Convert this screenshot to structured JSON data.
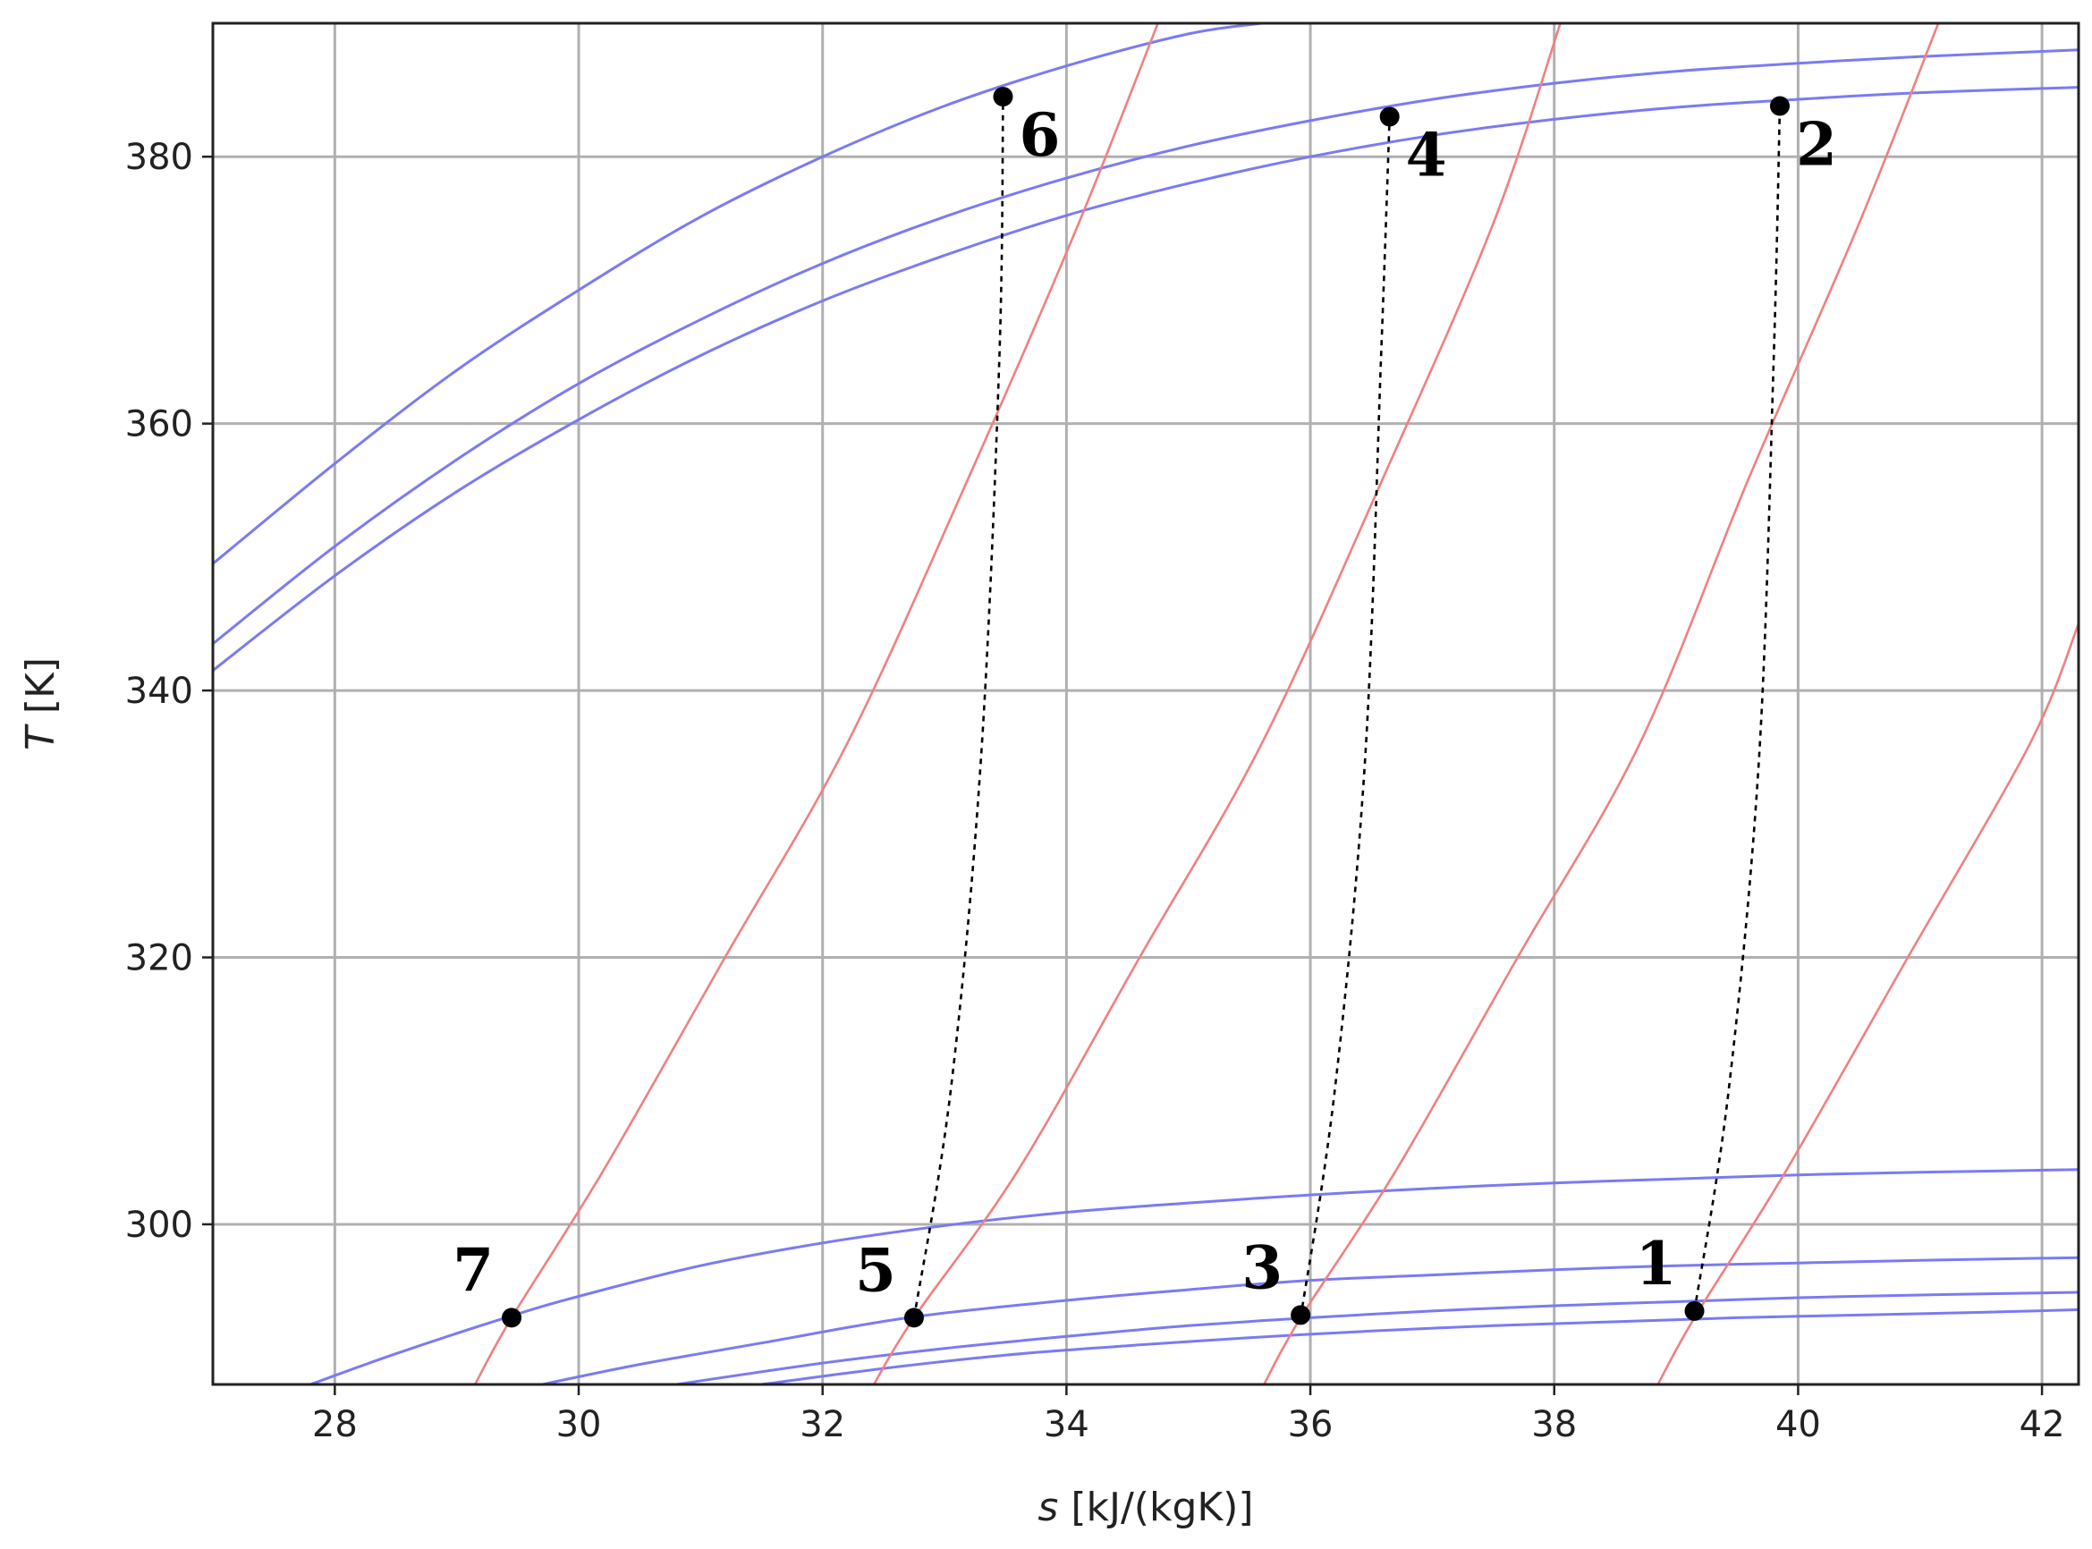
{
  "chart_data": {
    "type": "line",
    "title": "",
    "xlabel": {
      "italic": "s",
      "rest": " [kJ/(kgK)]"
    },
    "ylabel": {
      "italic": "T",
      "rest": " [K]"
    },
    "xlim": [
      27,
      42.3
    ],
    "ylim": [
      288,
      390
    ],
    "xticks": [
      28,
      30,
      32,
      34,
      36,
      38,
      40,
      42
    ],
    "yticks": [
      300,
      320,
      340,
      360,
      380
    ],
    "grid": true,
    "colors": {
      "isobar": "#7a7af5",
      "isentrope_ref": "#f08080",
      "process": "#000000",
      "grid": "#b0b0b0"
    },
    "series": [
      {
        "kind": "isobar-upper",
        "x": [
          27,
          28,
          29,
          30,
          31,
          32,
          33,
          34,
          35,
          35.6
        ],
        "y": [
          349.5,
          357,
          364,
          370,
          375.5,
          380,
          383.8,
          386.8,
          389.2,
          390
        ]
      },
      {
        "kind": "isobar-upper",
        "x": [
          27,
          28,
          29,
          30,
          31,
          32,
          33,
          34,
          35,
          36,
          37,
          38,
          39,
          40,
          41,
          42.3
        ],
        "y": [
          343.5,
          350.8,
          357.3,
          363,
          367.8,
          372,
          375.5,
          378.4,
          380.8,
          382.7,
          384.3,
          385.5,
          386.4,
          387,
          387.5,
          388
        ]
      },
      {
        "kind": "isobar-upper",
        "x": [
          27,
          28,
          29,
          30,
          31,
          32,
          33,
          34,
          35,
          36,
          37,
          38,
          39,
          40,
          41,
          42.3
        ],
        "y": [
          341.5,
          348.6,
          354.9,
          360.3,
          365.1,
          369.2,
          372.6,
          375.6,
          378,
          380,
          381.6,
          382.8,
          383.7,
          384.3,
          384.8,
          385.2
        ]
      },
      {
        "kind": "isobar-lower",
        "x": [
          27.8,
          28.5,
          29.4,
          30,
          31,
          32,
          33,
          34,
          35,
          36,
          37,
          38,
          39,
          40,
          41,
          42.3
        ],
        "y": [
          288,
          290.3,
          293,
          294.6,
          296.9,
          298.6,
          299.9,
          300.9,
          301.6,
          302.2,
          302.7,
          303.1,
          303.4,
          303.7,
          303.9,
          304.1
        ]
      },
      {
        "kind": "isobar-lower",
        "x": [
          29.7,
          30.5,
          31.5,
          32.7,
          34,
          35,
          36,
          37,
          38,
          39,
          40,
          41,
          42.3
        ],
        "y": [
          288,
          289.5,
          291.1,
          293,
          294.3,
          295.1,
          295.8,
          296.2,
          296.6,
          296.9,
          297.1,
          297.3,
          297.5
        ]
      },
      {
        "kind": "isobar-lower",
        "x": [
          30.8,
          32,
          33,
          34,
          35,
          36,
          37,
          38,
          39,
          40,
          41,
          42.3
        ],
        "y": [
          288,
          289.6,
          290.7,
          291.6,
          292.4,
          293,
          293.5,
          293.9,
          294.2,
          294.5,
          294.7,
          294.9
        ]
      },
      {
        "kind": "isobar-lower",
        "x": [
          31.5,
          32.5,
          33.5,
          34.5,
          35.5,
          36.5,
          37.5,
          38.5,
          39.5,
          40.5,
          41.5,
          42.3
        ],
        "y": [
          288,
          289.2,
          290.2,
          290.9,
          291.5,
          292,
          292.4,
          292.7,
          293,
          293.2,
          293.4,
          293.6
        ]
      },
      {
        "kind": "isentrope-ref",
        "x": [
          29.15,
          29.45,
          30.2,
          31.2,
          32.2,
          33.2,
          34.1,
          34.75
        ],
        "y": [
          288,
          293,
          304,
          320,
          336,
          356,
          375,
          390
        ]
      },
      {
        "kind": "isentrope-ref",
        "x": [
          32.42,
          32.75,
          33.6,
          34.6,
          35.6,
          36.6,
          37.5,
          38.05
        ],
        "y": [
          288,
          293,
          304,
          320,
          336,
          356,
          375,
          390
        ]
      },
      {
        "kind": "isentrope-ref",
        "x": [
          35.62,
          35.92,
          36.7,
          37.7,
          38.7,
          39.6,
          40.5,
          41.15
        ],
        "y": [
          288,
          293,
          304,
          320,
          336,
          356,
          375,
          390
        ]
      },
      {
        "kind": "isentrope-ref",
        "x": [
          38.85,
          39.15,
          39.9,
          40.9,
          41.9,
          42.3
        ],
        "y": [
          288,
          293,
          304,
          320,
          336,
          345
        ]
      },
      {
        "kind": "process",
        "x": [
          32.75,
          33.05,
          33.3,
          33.45,
          33.48
        ],
        "y": [
          293,
          310,
          335,
          365,
          384.5
        ]
      },
      {
        "kind": "process",
        "x": [
          35.92,
          36.2,
          36.45,
          36.58,
          36.65
        ],
        "y": [
          293,
          310,
          335,
          365,
          383
        ]
      },
      {
        "kind": "process",
        "x": [
          39.15,
          39.43,
          39.68,
          39.8,
          39.85
        ],
        "y": [
          293.5,
          310,
          335,
          365,
          383.8
        ]
      }
    ],
    "points": [
      {
        "label": "1",
        "x": 39.15,
        "y": 293.5,
        "anchor": "upper-left"
      },
      {
        "label": "2",
        "x": 39.85,
        "y": 383.8,
        "anchor": "lower-right"
      },
      {
        "label": "3",
        "x": 35.92,
        "y": 293.2,
        "anchor": "upper-left"
      },
      {
        "label": "4",
        "x": 36.65,
        "y": 383,
        "anchor": "lower-right"
      },
      {
        "label": "5",
        "x": 32.75,
        "y": 293,
        "anchor": "upper-left"
      },
      {
        "label": "6",
        "x": 33.48,
        "y": 384.5,
        "anchor": "lower-right"
      },
      {
        "label": "7",
        "x": 29.45,
        "y": 293,
        "anchor": "upper-left"
      }
    ]
  }
}
